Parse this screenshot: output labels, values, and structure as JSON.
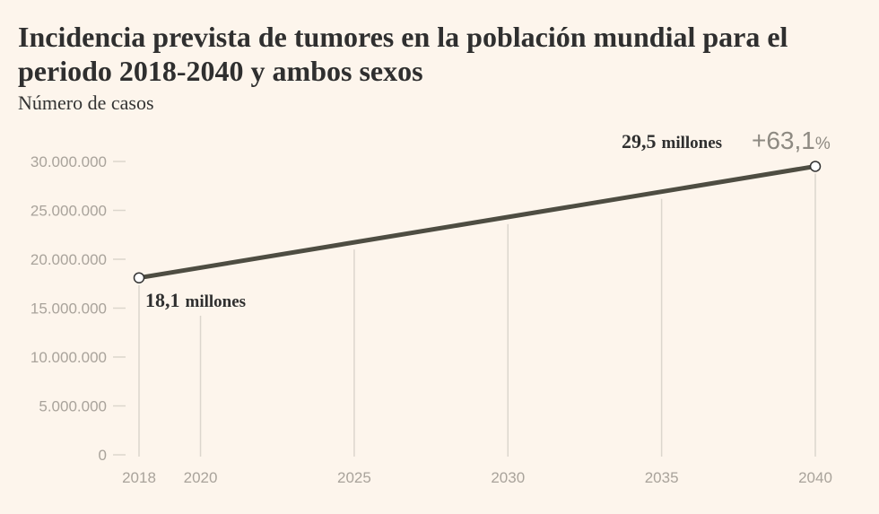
{
  "chart_data": {
    "type": "line",
    "title": "Incidencia prevista de tumores en la población mundial para el periodo 2018-2040 y ambos sexos",
    "subtitle": "Número de casos",
    "xlabel": "",
    "ylabel": "Número de casos",
    "x": [
      2018,
      2040
    ],
    "values": [
      18100000,
      29500000
    ],
    "xlim": [
      2018,
      2040
    ],
    "ylim": [
      0,
      30000000
    ],
    "yticks": [
      0,
      5000000,
      10000000,
      15000000,
      20000000,
      25000000,
      30000000
    ],
    "ytick_labels": [
      "0",
      "5.000.000",
      "10.000.000",
      "15.000.000",
      "20.000.000",
      "25.000.000",
      "30.000.000"
    ],
    "xticks": [
      2018,
      2020,
      2025,
      2030,
      2035,
      2040
    ],
    "xtick_labels": [
      "2018",
      "2020",
      "2025",
      "2030",
      "2035",
      "2040"
    ],
    "annotations": {
      "start_value": "18,1",
      "end_value": "29,5",
      "unit": "millones",
      "change_number": "+63,1",
      "change_symbol": "%"
    },
    "colors": {
      "line": "#4e4d42",
      "grid": "#dcd6cd",
      "background": "#fdf5ec"
    }
  }
}
